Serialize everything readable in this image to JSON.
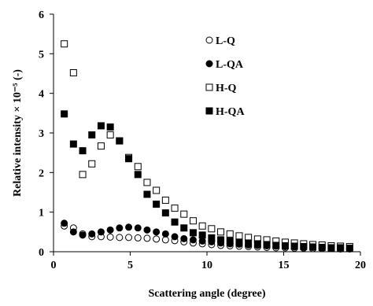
{
  "chart_data": {
    "type": "scatter",
    "title": "",
    "xlabel": "Scattering angle (degree)",
    "ylabel": "Relative intensity × 10⁻⁵ (-)",
    "xlim": [
      0,
      20
    ],
    "ylim": [
      0,
      6
    ],
    "xticks": [
      "0",
      "5",
      "10",
      "15",
      "20"
    ],
    "yticks": [
      "0",
      "1",
      "2",
      "3",
      "4",
      "5",
      "6"
    ],
    "grid": false,
    "legend_position": "top-right",
    "series": [
      {
        "name": "L-Q",
        "marker": "open-circle",
        "color": "#000000",
        "x": [
          0.7,
          1.3,
          1.9,
          2.5,
          3.1,
          3.7,
          4.3,
          4.9,
          5.5,
          6.1,
          6.7,
          7.3,
          7.9,
          8.5,
          9.1,
          9.7,
          10.3,
          10.9,
          11.5,
          12.1,
          12.7,
          13.3,
          13.9,
          14.5,
          15.1,
          15.7,
          16.3,
          16.9,
          17.5,
          18.1,
          18.7,
          19.3
        ],
        "y": [
          0.65,
          0.6,
          0.45,
          0.38,
          0.38,
          0.37,
          0.36,
          0.36,
          0.35,
          0.34,
          0.32,
          0.3,
          0.28,
          0.25,
          0.22,
          0.2,
          0.18,
          0.16,
          0.15,
          0.14,
          0.13,
          0.12,
          0.11,
          0.1,
          0.1,
          0.09,
          0.09,
          0.08,
          0.08,
          0.08,
          0.07,
          0.07
        ]
      },
      {
        "name": "L-QA",
        "marker": "filled-circle",
        "color": "#000000",
        "x": [
          0.7,
          1.3,
          1.9,
          2.5,
          3.1,
          3.7,
          4.3,
          4.9,
          5.5,
          6.1,
          6.7,
          7.3,
          7.9,
          8.5,
          9.1,
          9.7,
          10.3,
          10.9,
          11.5,
          12.1,
          12.7,
          13.3,
          13.9,
          14.5,
          15.1,
          15.7,
          16.3,
          16.9,
          17.5,
          18.1,
          18.7,
          19.3
        ],
        "y": [
          0.72,
          0.5,
          0.42,
          0.45,
          0.5,
          0.55,
          0.6,
          0.62,
          0.6,
          0.55,
          0.5,
          0.45,
          0.38,
          0.33,
          0.3,
          0.27,
          0.25,
          0.22,
          0.2,
          0.19,
          0.17,
          0.16,
          0.15,
          0.14,
          0.13,
          0.12,
          0.11,
          0.11,
          0.1,
          0.1,
          0.09,
          0.09
        ]
      },
      {
        "name": "H-Q",
        "marker": "open-square",
        "color": "#000000",
        "x": [
          0.7,
          1.3,
          1.9,
          2.5,
          3.1,
          3.7,
          4.3,
          4.9,
          5.5,
          6.1,
          6.7,
          7.3,
          7.9,
          8.5,
          9.1,
          9.7,
          10.3,
          10.9,
          11.5,
          12.1,
          12.7,
          13.3,
          13.9,
          14.5,
          15.1,
          15.7,
          16.3,
          16.9,
          17.5,
          18.1,
          18.7,
          19.3
        ],
        "y": [
          5.25,
          4.52,
          1.95,
          2.22,
          2.67,
          2.95,
          2.8,
          2.38,
          2.15,
          1.75,
          1.55,
          1.3,
          1.1,
          0.95,
          0.78,
          0.65,
          0.58,
          0.5,
          0.45,
          0.4,
          0.36,
          0.32,
          0.3,
          0.27,
          0.24,
          0.22,
          0.2,
          0.18,
          0.17,
          0.15,
          0.14,
          0.13
        ]
      },
      {
        "name": "H-QA",
        "marker": "filled-square",
        "color": "#000000",
        "x": [
          0.7,
          1.3,
          1.9,
          2.5,
          3.1,
          3.7,
          4.3,
          4.9,
          5.5,
          6.1,
          6.7,
          7.3,
          7.9,
          8.5,
          9.1,
          9.7,
          10.3,
          10.9,
          11.5,
          12.1,
          12.7,
          13.3,
          13.9,
          14.5,
          15.1,
          15.7,
          16.3,
          16.9,
          17.5,
          18.1,
          18.7,
          19.3
        ],
        "y": [
          3.48,
          2.72,
          2.55,
          2.95,
          3.18,
          3.15,
          2.8,
          2.35,
          1.95,
          1.45,
          1.2,
          0.98,
          0.75,
          0.6,
          0.48,
          0.42,
          0.35,
          0.3,
          0.27,
          0.24,
          0.22,
          0.2,
          0.18,
          0.16,
          0.15,
          0.14,
          0.13,
          0.12,
          0.11,
          0.1,
          0.1,
          0.09
        ]
      }
    ]
  }
}
